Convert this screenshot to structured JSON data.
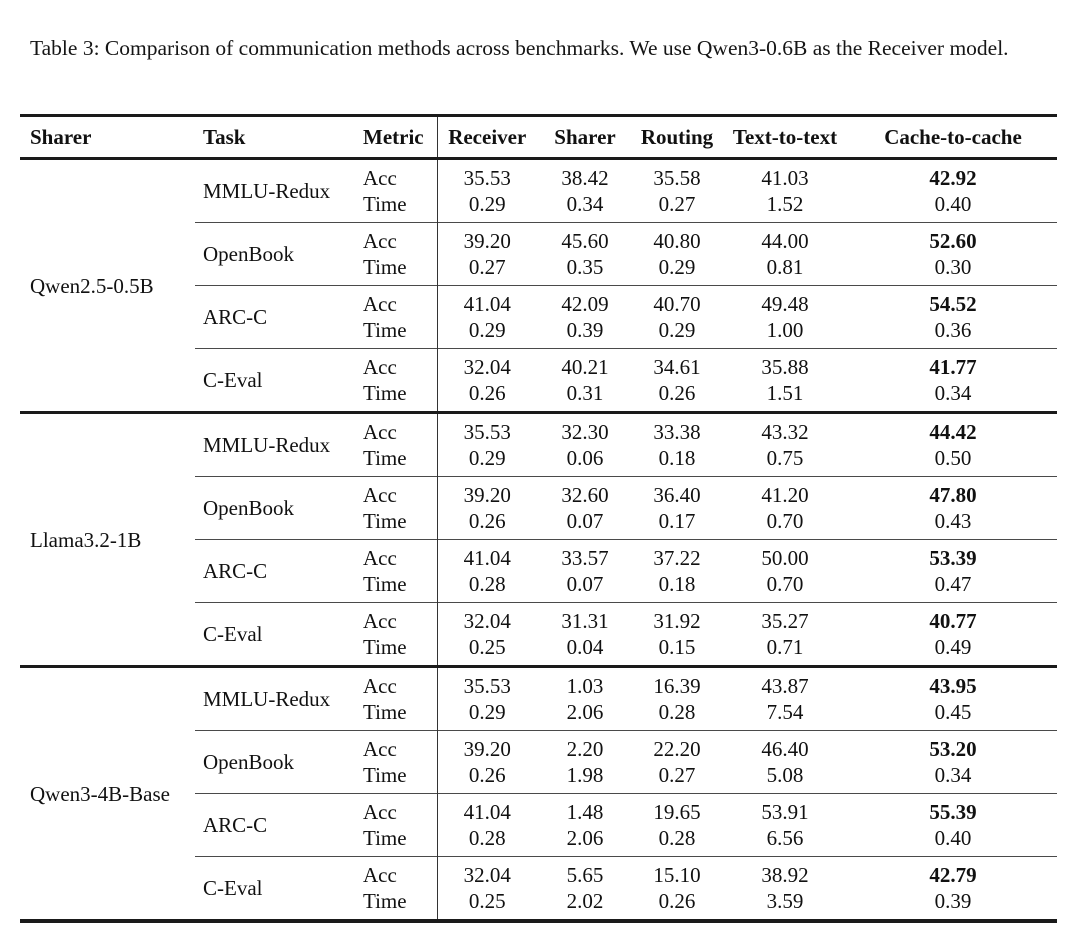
{
  "caption": "Table 3: Comparison of communication methods across benchmarks. We use Qwen3-0.6B as the Receiver model.",
  "table": {
    "columns": [
      "Sharer",
      "Task",
      "Metric",
      "Receiver",
      "Sharer",
      "Routing",
      "Text-to-text",
      "Cache-to-cache"
    ],
    "metric_labels": [
      "Acc",
      "Time"
    ],
    "value_column_keys": [
      "receiver",
      "sharer",
      "routing",
      "text-to-text",
      "cache-to-cache"
    ],
    "bold_value_column": "cache-to-cache",
    "bold_metric": "Acc",
    "groups": [
      {
        "sharer": "Qwen2.5-0.5B",
        "rows": [
          {
            "task": "MMLU-Redux",
            "acc": [
              "35.53",
              "38.42",
              "35.58",
              "41.03",
              "42.92"
            ],
            "time": [
              "0.29",
              "0.34",
              "0.27",
              "1.52",
              "0.40"
            ]
          },
          {
            "task": "OpenBook",
            "acc": [
              "39.20",
              "45.60",
              "40.80",
              "44.00",
              "52.60"
            ],
            "time": [
              "0.27",
              "0.35",
              "0.29",
              "0.81",
              "0.30"
            ]
          },
          {
            "task": "ARC-C",
            "acc": [
              "41.04",
              "42.09",
              "40.70",
              "49.48",
              "54.52"
            ],
            "time": [
              "0.29",
              "0.39",
              "0.29",
              "1.00",
              "0.36"
            ]
          },
          {
            "task": "C-Eval",
            "acc": [
              "32.04",
              "40.21",
              "34.61",
              "35.88",
              "41.77"
            ],
            "time": [
              "0.26",
              "0.31",
              "0.26",
              "1.51",
              "0.34"
            ]
          }
        ]
      },
      {
        "sharer": "Llama3.2-1B",
        "rows": [
          {
            "task": "MMLU-Redux",
            "acc": [
              "35.53",
              "32.30",
              "33.38",
              "43.32",
              "44.42"
            ],
            "time": [
              "0.29",
              "0.06",
              "0.18",
              "0.75",
              "0.50"
            ]
          },
          {
            "task": "OpenBook",
            "acc": [
              "39.20",
              "32.60",
              "36.40",
              "41.20",
              "47.80"
            ],
            "time": [
              "0.26",
              "0.07",
              "0.17",
              "0.70",
              "0.43"
            ]
          },
          {
            "task": "ARC-C",
            "acc": [
              "41.04",
              "33.57",
              "37.22",
              "50.00",
              "53.39"
            ],
            "time": [
              "0.28",
              "0.07",
              "0.18",
              "0.70",
              "0.47"
            ]
          },
          {
            "task": "C-Eval",
            "acc": [
              "32.04",
              "31.31",
              "31.92",
              "35.27",
              "40.77"
            ],
            "time": [
              "0.25",
              "0.04",
              "0.15",
              "0.71",
              "0.49"
            ]
          }
        ]
      },
      {
        "sharer": "Qwen3-4B-Base",
        "rows": [
          {
            "task": "MMLU-Redux",
            "acc": [
              "35.53",
              "1.03",
              "16.39",
              "43.87",
              "43.95"
            ],
            "time": [
              "0.29",
              "2.06",
              "0.28",
              "7.54",
              "0.45"
            ]
          },
          {
            "task": "OpenBook",
            "acc": [
              "39.20",
              "2.20",
              "22.20",
              "46.40",
              "53.20"
            ],
            "time": [
              "0.26",
              "1.98",
              "0.27",
              "5.08",
              "0.34"
            ]
          },
          {
            "task": "ARC-C",
            "acc": [
              "41.04",
              "1.48",
              "19.65",
              "53.91",
              "55.39"
            ],
            "time": [
              "0.28",
              "2.06",
              "0.28",
              "6.56",
              "0.40"
            ]
          },
          {
            "task": "C-Eval",
            "acc": [
              "32.04",
              "5.65",
              "15.10",
              "38.92",
              "42.79"
            ],
            "time": [
              "0.25",
              "2.02",
              "0.26",
              "3.59",
              "0.39"
            ]
          }
        ]
      }
    ]
  }
}
